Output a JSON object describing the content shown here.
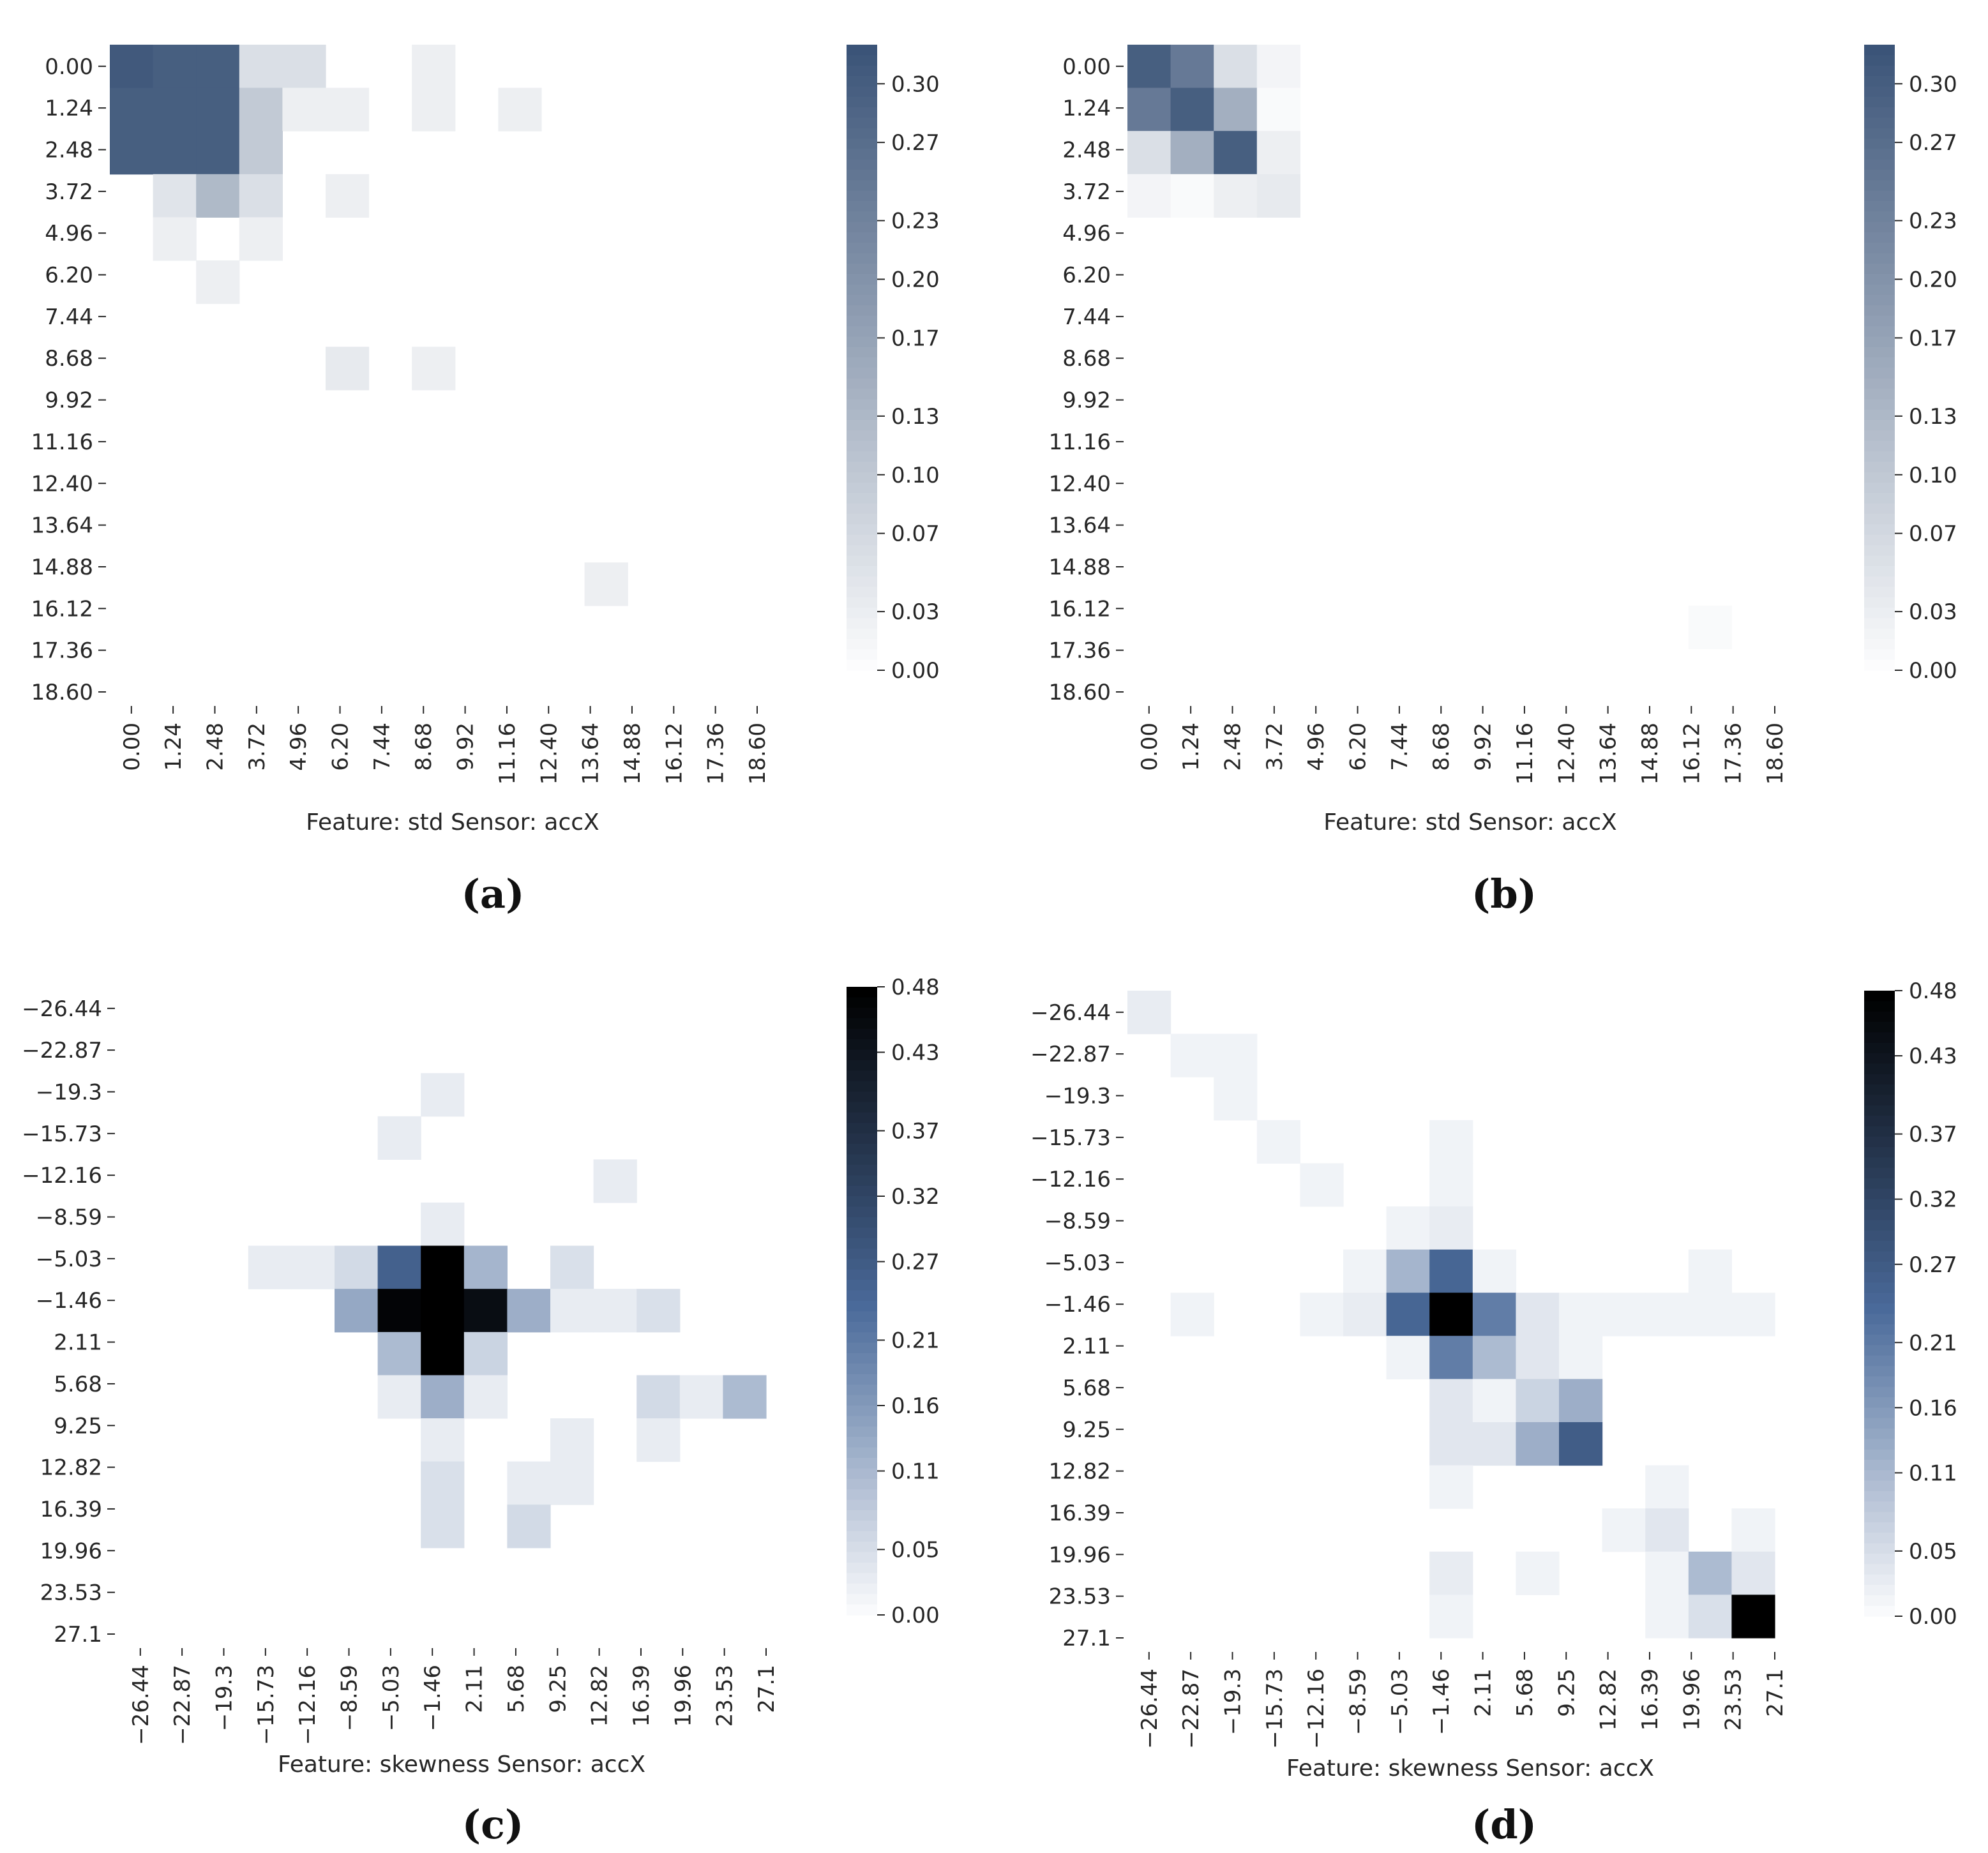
{
  "chart_data": [
    {
      "type": "heatmap",
      "panel_label": "(a)",
      "title": "",
      "xlabel": "Feature: std Sensor: accX",
      "ylabel": "",
      "row_tick_labels": [
        "0.00",
        "1.24",
        "2.48",
        "3.72",
        "4.96",
        "6.20",
        "7.44",
        "8.68",
        "9.92",
        "11.16",
        "12.40",
        "13.64",
        "14.88",
        "16.12",
        "17.36",
        "18.60"
      ],
      "col_tick_labels": [
        "0.00",
        "1.24",
        "2.48",
        "3.72",
        "4.96",
        "6.20",
        "7.44",
        "8.68",
        "9.92",
        "11.16",
        "12.40",
        "13.64",
        "14.88",
        "16.12",
        "17.36",
        "18.60"
      ],
      "n_rows": 15,
      "n_cols": 15,
      "colormap": [
        "#ffffff",
        "#3b5478"
      ],
      "colorbar": {
        "min": 0.0,
        "max": 0.32,
        "ticks": [
          0.0,
          0.03,
          0.07,
          0.1,
          0.13,
          0.17,
          0.2,
          0.23,
          0.27,
          0.3
        ],
        "tick_labels": [
          "0.00",
          "0.03",
          "0.07",
          "0.10",
          "0.13",
          "0.17",
          "0.20",
          "0.23",
          "0.27",
          "0.30"
        ]
      },
      "cells": [
        [
          0,
          0,
          0.31
        ],
        [
          0,
          1,
          0.3
        ],
        [
          0,
          2,
          0.3
        ],
        [
          0,
          3,
          0.06
        ],
        [
          0,
          4,
          0.06
        ],
        [
          0,
          7,
          0.03
        ],
        [
          1,
          0,
          0.3
        ],
        [
          1,
          1,
          0.3
        ],
        [
          1,
          2,
          0.3
        ],
        [
          1,
          3,
          0.1
        ],
        [
          1,
          4,
          0.03
        ],
        [
          1,
          5,
          0.03
        ],
        [
          1,
          7,
          0.03
        ],
        [
          1,
          9,
          0.03
        ],
        [
          2,
          0,
          0.3
        ],
        [
          2,
          1,
          0.3
        ],
        [
          2,
          2,
          0.3
        ],
        [
          2,
          3,
          0.1
        ],
        [
          3,
          1,
          0.05
        ],
        [
          3,
          2,
          0.13
        ],
        [
          3,
          3,
          0.06
        ],
        [
          3,
          5,
          0.03
        ],
        [
          4,
          1,
          0.03
        ],
        [
          4,
          3,
          0.03
        ],
        [
          5,
          2,
          0.03
        ],
        [
          7,
          5,
          0.04
        ],
        [
          7,
          7,
          0.03
        ],
        [
          12,
          11,
          0.03
        ]
      ]
    },
    {
      "type": "heatmap",
      "panel_label": "(b)",
      "title": "",
      "xlabel": "Feature: std Sensor: accX",
      "ylabel": "",
      "row_tick_labels": [
        "0.00",
        "1.24",
        "2.48",
        "3.72",
        "4.96",
        "6.20",
        "7.44",
        "8.68",
        "9.92",
        "11.16",
        "12.40",
        "13.64",
        "14.88",
        "16.12",
        "17.36",
        "18.60"
      ],
      "col_tick_labels": [
        "0.00",
        "1.24",
        "2.48",
        "3.72",
        "4.96",
        "6.20",
        "7.44",
        "8.68",
        "9.92",
        "11.16",
        "12.40",
        "13.64",
        "14.88",
        "16.12",
        "17.36",
        "18.60"
      ],
      "n_rows": 15,
      "n_cols": 15,
      "colormap": [
        "#ffffff",
        "#3b5478"
      ],
      "colorbar": {
        "min": 0.0,
        "max": 0.32,
        "ticks": [
          0.0,
          0.03,
          0.07,
          0.1,
          0.13,
          0.17,
          0.2,
          0.23,
          0.27,
          0.3
        ],
        "tick_labels": [
          "0.00",
          "0.03",
          "0.07",
          "0.10",
          "0.13",
          "0.17",
          "0.20",
          "0.23",
          "0.27",
          "0.30"
        ]
      },
      "cells": [
        [
          0,
          0,
          0.3
        ],
        [
          0,
          1,
          0.25
        ],
        [
          0,
          2,
          0.06
        ],
        [
          0,
          3,
          0.02
        ],
        [
          1,
          0,
          0.25
        ],
        [
          1,
          1,
          0.3
        ],
        [
          1,
          2,
          0.15
        ],
        [
          1,
          3,
          0.01
        ],
        [
          2,
          0,
          0.06
        ],
        [
          2,
          1,
          0.15
        ],
        [
          2,
          2,
          0.3
        ],
        [
          2,
          3,
          0.03
        ],
        [
          3,
          0,
          0.02
        ],
        [
          3,
          1,
          0.01
        ],
        [
          3,
          2,
          0.03
        ],
        [
          3,
          3,
          0.04
        ],
        [
          13,
          13,
          0.01
        ]
      ]
    },
    {
      "type": "heatmap",
      "panel_label": "(c)",
      "title": "",
      "xlabel": "Feature: skewness Sensor: accX",
      "ylabel": "",
      "row_tick_labels": [
        "−26.44",
        "−22.87",
        "−19.3",
        "−15.73",
        "−12.16",
        "−8.59",
        "−5.03",
        "−1.46",
        "2.11",
        "5.68",
        "9.25",
        "12.82",
        "16.39",
        "19.96",
        "23.53",
        "27.1"
      ],
      "col_tick_labels": [
        "−26.44",
        "−22.87",
        "−19.3",
        "−15.73",
        "−12.16",
        "−8.59",
        "−5.03",
        "−1.46",
        "2.11",
        "5.68",
        "9.25",
        "12.82",
        "16.39",
        "19.96",
        "23.53",
        "27.1"
      ],
      "n_rows": 15,
      "n_cols": 15,
      "colormap": [
        "#ffffff",
        "#4a6a9a",
        "#000000"
      ],
      "colorbar": {
        "min": 0.0,
        "max": 0.48,
        "ticks": [
          0.0,
          0.05,
          0.11,
          0.16,
          0.21,
          0.27,
          0.32,
          0.37,
          0.43,
          0.48
        ],
        "tick_labels": [
          "0.00",
          "0.05",
          "0.11",
          "0.16",
          "0.21",
          "0.27",
          "0.32",
          "0.37",
          "0.43",
          "0.48"
        ]
      },
      "cells": [
        [
          2,
          7,
          0.03
        ],
        [
          3,
          6,
          0.03
        ],
        [
          4,
          11,
          0.03
        ],
        [
          5,
          7,
          0.03
        ],
        [
          6,
          3,
          0.03
        ],
        [
          6,
          4,
          0.03
        ],
        [
          6,
          5,
          0.06
        ],
        [
          6,
          6,
          0.26
        ],
        [
          6,
          7,
          0.48
        ],
        [
          6,
          8,
          0.12
        ],
        [
          6,
          10,
          0.05
        ],
        [
          7,
          5,
          0.14
        ],
        [
          7,
          6,
          0.47
        ],
        [
          7,
          7,
          0.48
        ],
        [
          7,
          8,
          0.45
        ],
        [
          7,
          9,
          0.13
        ],
        [
          7,
          10,
          0.03
        ],
        [
          7,
          11,
          0.03
        ],
        [
          7,
          12,
          0.05
        ],
        [
          8,
          6,
          0.11
        ],
        [
          8,
          7,
          0.48
        ],
        [
          8,
          8,
          0.07
        ],
        [
          9,
          6,
          0.03
        ],
        [
          9,
          7,
          0.13
        ],
        [
          9,
          8,
          0.03
        ],
        [
          9,
          12,
          0.06
        ],
        [
          9,
          13,
          0.03
        ],
        [
          9,
          14,
          0.11
        ],
        [
          10,
          7,
          0.03
        ],
        [
          10,
          10,
          0.03
        ],
        [
          10,
          12,
          0.03
        ],
        [
          11,
          7,
          0.05
        ],
        [
          11,
          9,
          0.03
        ],
        [
          11,
          10,
          0.03
        ],
        [
          12,
          7,
          0.05
        ],
        [
          12,
          9,
          0.06
        ]
      ]
    },
    {
      "type": "heatmap",
      "panel_label": "(d)",
      "title": "",
      "xlabel": "Feature: skewness Sensor: accX",
      "ylabel": "",
      "row_tick_labels": [
        "−26.44",
        "−22.87",
        "−19.3",
        "−15.73",
        "−12.16",
        "−8.59",
        "−5.03",
        "−1.46",
        "2.11",
        "5.68",
        "9.25",
        "12.82",
        "16.39",
        "19.96",
        "23.53",
        "27.1"
      ],
      "col_tick_labels": [
        "−26.44",
        "−22.87",
        "−19.3",
        "−15.73",
        "−12.16",
        "−8.59",
        "−5.03",
        "−1.46",
        "2.11",
        "5.68",
        "9.25",
        "12.82",
        "16.39",
        "19.96",
        "23.53",
        "27.1"
      ],
      "n_rows": 15,
      "n_cols": 15,
      "colormap": [
        "#ffffff",
        "#4a6a9a",
        "#000000"
      ],
      "colorbar": {
        "min": 0.0,
        "max": 0.48,
        "ticks": [
          0.0,
          0.05,
          0.11,
          0.16,
          0.21,
          0.27,
          0.32,
          0.37,
          0.43,
          0.48
        ],
        "tick_labels": [
          "0.00",
          "0.05",
          "0.11",
          "0.16",
          "0.21",
          "0.27",
          "0.32",
          "0.37",
          "0.43",
          "0.48"
        ]
      },
      "cells": [
        [
          0,
          0,
          0.03
        ],
        [
          1,
          1,
          0.02
        ],
        [
          1,
          2,
          0.02
        ],
        [
          2,
          2,
          0.02
        ],
        [
          3,
          3,
          0.02
        ],
        [
          3,
          7,
          0.02
        ],
        [
          4,
          4,
          0.02
        ],
        [
          4,
          7,
          0.02
        ],
        [
          5,
          6,
          0.02
        ],
        [
          5,
          7,
          0.03
        ],
        [
          6,
          5,
          0.02
        ],
        [
          6,
          6,
          0.12
        ],
        [
          6,
          7,
          0.25
        ],
        [
          6,
          8,
          0.02
        ],
        [
          6,
          13,
          0.02
        ],
        [
          7,
          1,
          0.02
        ],
        [
          7,
          4,
          0.02
        ],
        [
          7,
          5,
          0.03
        ],
        [
          7,
          6,
          0.25
        ],
        [
          7,
          7,
          0.48
        ],
        [
          7,
          8,
          0.21
        ],
        [
          7,
          9,
          0.04
        ],
        [
          7,
          10,
          0.02
        ],
        [
          7,
          11,
          0.02
        ],
        [
          7,
          12,
          0.02
        ],
        [
          7,
          13,
          0.02
        ],
        [
          7,
          14,
          0.02
        ],
        [
          8,
          6,
          0.02
        ],
        [
          8,
          7,
          0.21
        ],
        [
          8,
          8,
          0.11
        ],
        [
          8,
          9,
          0.04
        ],
        [
          8,
          10,
          0.02
        ],
        [
          9,
          7,
          0.04
        ],
        [
          9,
          8,
          0.02
        ],
        [
          9,
          9,
          0.07
        ],
        [
          9,
          10,
          0.13
        ],
        [
          10,
          7,
          0.04
        ],
        [
          10,
          8,
          0.04
        ],
        [
          10,
          9,
          0.13
        ],
        [
          10,
          10,
          0.27
        ],
        [
          11,
          7,
          0.02
        ],
        [
          11,
          12,
          0.02
        ],
        [
          12,
          11,
          0.02
        ],
        [
          12,
          12,
          0.04
        ],
        [
          12,
          14,
          0.02
        ],
        [
          13,
          7,
          0.03
        ],
        [
          13,
          9,
          0.02
        ],
        [
          13,
          12,
          0.02
        ],
        [
          13,
          13,
          0.11
        ],
        [
          13,
          14,
          0.04
        ],
        [
          14,
          7,
          0.02
        ],
        [
          14,
          12,
          0.02
        ],
        [
          14,
          13,
          0.05
        ],
        [
          14,
          14,
          0.48
        ]
      ]
    }
  ]
}
